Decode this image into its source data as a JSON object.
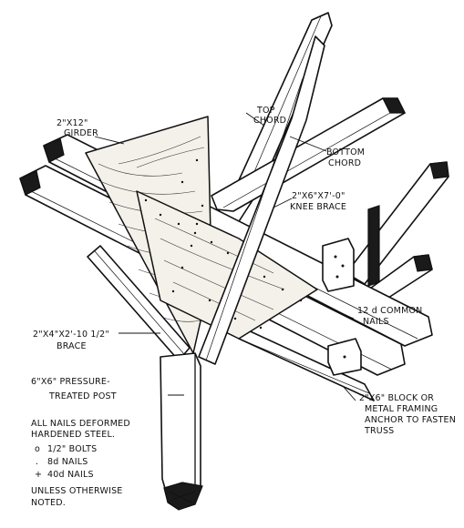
{
  "labels": {
    "girder": "2\"X12\" GIRDER",
    "top_chord": "TOP CHORD",
    "bottom_chord": "BOTTOM CHORD",
    "knee_brace": "2\"X6\"X7'-0\" KNEE BRACE",
    "brace": "2\"X4\"X2'-10 1/2\" BRACE",
    "nails": "12 d COMMON NAILS",
    "post": "6\"X6\" PRESSURE-TREATED POST",
    "block": "2\"X6\" BLOCK OR METAL FRAMING ANCHOR TO FASTEN TRUSS"
  },
  "legend": {
    "header": "ALL NAILS DEFORMED HARDENED STEEL.",
    "items": [
      {
        "symbol": "o",
        "text": "1/2\" BOLTS"
      },
      {
        "symbol": ".",
        "text": "8d NAILS"
      },
      {
        "symbol": "+",
        "text": "40d NAILS"
      }
    ],
    "footer": "UNLESS OTHERWISE NOTED."
  }
}
